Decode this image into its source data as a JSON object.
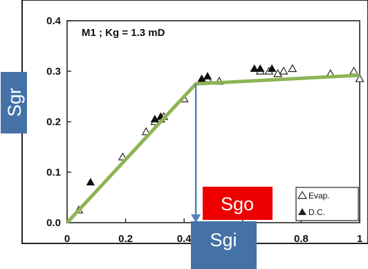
{
  "chart_data": {
    "type": "scatter",
    "annotation": "M1 ; Kg = 1.3 mD",
    "xlim": [
      0,
      1
    ],
    "ylim": [
      0,
      0.4
    ],
    "x_ticks": [
      "0",
      "0.2",
      "0.4",
      "0.6",
      "0.8",
      "1"
    ],
    "y_ticks": [
      "0.0",
      "0.1",
      "0.2",
      "0.3",
      "0.4"
    ],
    "legend_position": "bottom-right",
    "series": [
      {
        "name": "Evap.",
        "marker": "open-triangle",
        "points": [
          [
            0.04,
            0.025
          ],
          [
            0.19,
            0.13
          ],
          [
            0.27,
            0.18
          ],
          [
            0.3,
            0.2
          ],
          [
            0.32,
            0.205
          ],
          [
            0.33,
            0.21
          ],
          [
            0.4,
            0.245
          ],
          [
            0.48,
            0.285
          ],
          [
            0.52,
            0.28
          ],
          [
            0.66,
            0.3
          ],
          [
            0.69,
            0.3
          ],
          [
            0.72,
            0.295
          ],
          [
            0.74,
            0.3
          ],
          [
            0.77,
            0.305
          ],
          [
            0.9,
            0.295
          ],
          [
            0.98,
            0.3
          ],
          [
            1.0,
            0.285
          ]
        ]
      },
      {
        "name": "D.C.",
        "marker": "filled-triangle",
        "points": [
          [
            0.08,
            0.08
          ],
          [
            0.3,
            0.205
          ],
          [
            0.32,
            0.21
          ],
          [
            0.46,
            0.285
          ],
          [
            0.48,
            0.29
          ],
          [
            0.64,
            0.305
          ],
          [
            0.66,
            0.305
          ],
          [
            0.7,
            0.305
          ]
        ]
      }
    ],
    "trend_line": {
      "color": "#8DB454",
      "points": [
        [
          0.0,
          0.0
        ],
        [
          0.44,
          0.275
        ],
        [
          1.0,
          0.292
        ]
      ]
    },
    "arrow": {
      "color": "#4F81BD",
      "from": [
        0.44,
        0.275
      ],
      "to": [
        0.44,
        0.0
      ]
    }
  },
  "labels": {
    "sgr": "Sgr",
    "sgo": "Sgo",
    "sgi": "Sgi"
  },
  "colors": {
    "blue_box": "#4472A7",
    "red_box": "#EE0000",
    "green_line": "#8DB454",
    "frame": "#222222"
  }
}
